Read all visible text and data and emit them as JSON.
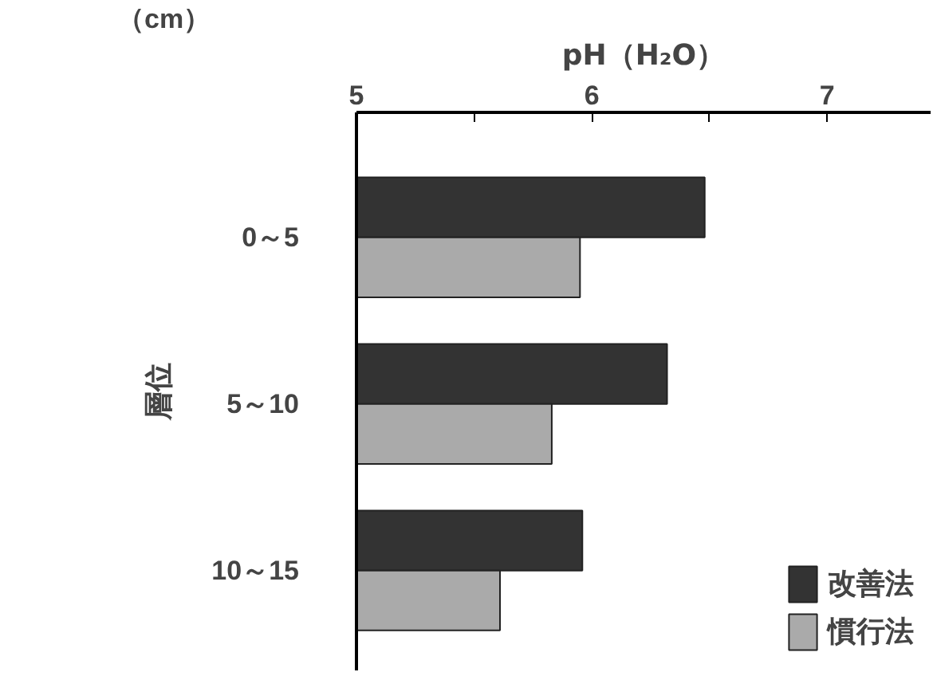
{
  "chart_data": {
    "type": "bar",
    "orientation": "horizontal",
    "xlabel": "pH（H₂O）",
    "ylabel": "層位",
    "annotations": [
      "（cm）"
    ],
    "categories": [
      "0～5",
      "5～10",
      "10～15"
    ],
    "series": [
      {
        "name": "改善法",
        "color": "#333333",
        "values": [
          6.48,
          6.32,
          5.96
        ]
      },
      {
        "name": "慣行法",
        "color": "#aaaaaa",
        "values": [
          5.95,
          5.83,
          5.61
        ]
      }
    ],
    "xlim": [
      5,
      7.44
    ],
    "xticks": [
      5,
      {
        "value": 5.5,
        "label": null
      },
      6,
      {
        "value": 6.5,
        "label": null
      },
      7
    ],
    "legend": "bottom right",
    "grid": false
  }
}
